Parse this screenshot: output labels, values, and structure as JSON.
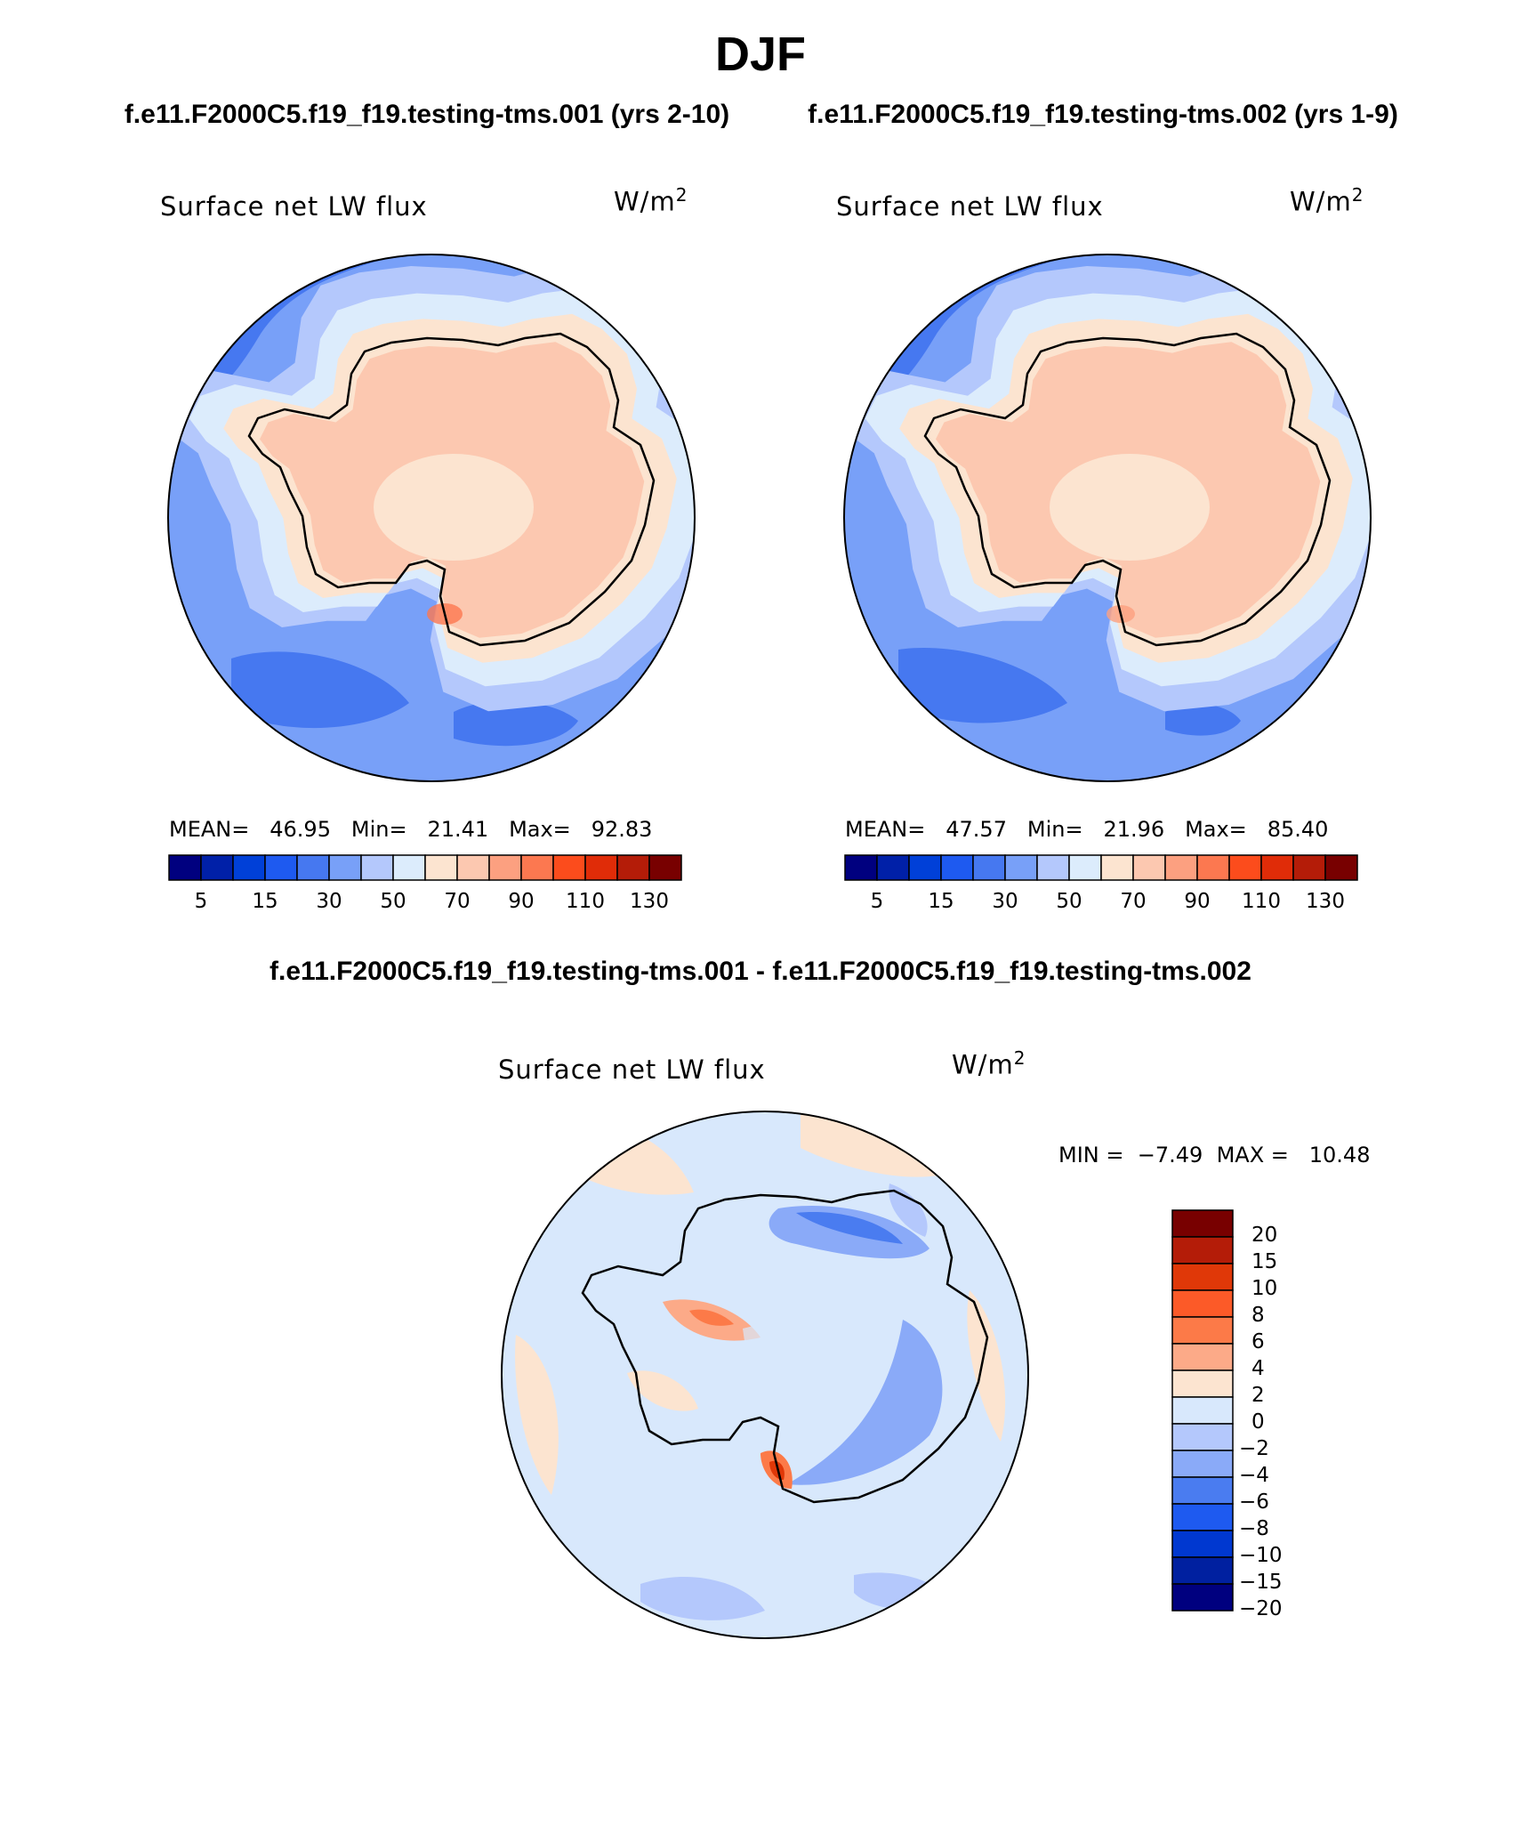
{
  "title": "DJF",
  "panels": [
    {
      "case": "f.e11.F2000C5.f19_f19.testing-tms.001 (yrs 2-10)",
      "variable": "Surface net LW flux",
      "units_base": "W/m",
      "units_exp": "2",
      "mean_label": "MEAN=",
      "mean": "46.95",
      "min_label": "Min=",
      "min": "21.41",
      "max_label": "Max=",
      "max": "92.83"
    },
    {
      "case": "f.e11.F2000C5.f19_f19.testing-tms.002 (yrs 1-9)",
      "variable": "Surface net LW flux",
      "units_base": "W/m",
      "units_exp": "2",
      "mean_label": "MEAN=",
      "mean": "47.57",
      "min_label": "Min=",
      "min": "21.96",
      "max_label": "Max=",
      "max": "85.40"
    }
  ],
  "colorbar": {
    "ticks": [
      "5",
      "15",
      "30",
      "50",
      "70",
      "90",
      "110",
      "130"
    ],
    "colors": [
      "#00007f",
      "#0020a8",
      "#0040d8",
      "#1e5af0",
      "#4678f0",
      "#78a0f8",
      "#b4c8fc",
      "#dcecfc",
      "#fce4d0",
      "#fcc8b0",
      "#fca080",
      "#fc7850",
      "#fc4c1c",
      "#e02c08",
      "#b41c08",
      "#780000"
    ]
  },
  "diff": {
    "title": "f.e11.F2000C5.f19_f19.testing-tms.001 - f.e11.F2000C5.f19_f19.testing-tms.002",
    "variable": "Surface net LW flux",
    "units_base": "W/m",
    "units_exp": "2",
    "min_label": "MIN =",
    "min": "−7.49",
    "max_label": "MAX =",
    "max": "10.48",
    "ticks": [
      "20",
      "15",
      "10",
      "8",
      "6",
      "4",
      "2",
      "0",
      "−2",
      "−4",
      "−6",
      "−8",
      "−10",
      "−15",
      "−20"
    ],
    "colors": [
      "#780000",
      "#b41c08",
      "#e03808",
      "#fc5a28",
      "#fc7a48",
      "#fcaa88",
      "#fce4d0",
      "#d8e8fc",
      "#b4c8fc",
      "#8aaaf8",
      "#4a7cf0",
      "#1e5af0",
      "#0038d0",
      "#0020a0",
      "#00007f"
    ]
  },
  "palette": {
    "ocean_dark": "#4678f0",
    "ocean_mid": "#78a0f8",
    "ocean_light": "#b4c8fc",
    "coast_pale": "#dcecfc",
    "land_pale": "#fce4d0",
    "land_warm": "#fcc8b0",
    "hot": "#fc7850",
    "diff_bg": "#d8e8fc"
  }
}
